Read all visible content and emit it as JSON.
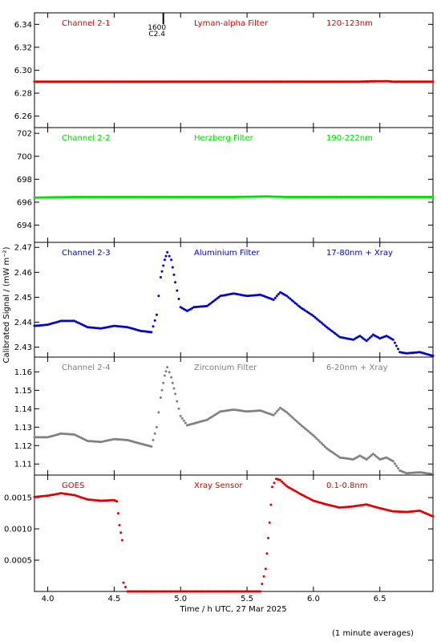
{
  "chart_data": {
    "type": "scatter",
    "shared_x": {
      "label": "Time / h UTC, 27 Mar 2025",
      "range": [
        3.9,
        6.9
      ],
      "ticks": [
        4.0,
        4.5,
        5.0,
        5.5,
        6.0,
        6.5
      ],
      "tick_labels": [
        "4.0",
        "4.5",
        "5.0",
        "5.5",
        "6.0",
        "6.5"
      ]
    },
    "ylabel": "Calibrated Signal / (mW m⁻²)",
    "footnote": "(1 minute averages)",
    "flare_marker": {
      "x": 4.87,
      "labels": [
        "1600",
        "C2.4"
      ]
    },
    "panels": [
      {
        "name": "Channel 2-1",
        "filter": "Lyman-alpha Filter",
        "band": "120-123nm",
        "color": "#dd0000",
        "ylim": [
          6.25,
          6.35
        ],
        "yticks": [
          6.26,
          6.28,
          6.3,
          6.32,
          6.34
        ],
        "ytick_labels": [
          "6.26",
          "6.28",
          "6.30",
          "6.32",
          "6.34"
        ],
        "points": [
          [
            3.9,
            6.29
          ],
          [
            4.2,
            6.29
          ],
          [
            4.5,
            6.29
          ],
          [
            4.8,
            6.29
          ],
          [
            5.1,
            6.29
          ],
          [
            5.4,
            6.29
          ],
          [
            5.7,
            6.29
          ],
          [
            6.0,
            6.29
          ],
          [
            6.3,
            6.29
          ],
          [
            6.55,
            6.2905
          ],
          [
            6.6,
            6.29
          ],
          [
            6.9,
            6.29
          ]
        ]
      },
      {
        "name": "Channel 2-2",
        "filter": "Herzberg Filter",
        "band": "190-222nm",
        "color": "#00dd00",
        "ylim": [
          692.5,
          702.5
        ],
        "yticks": [
          694,
          696,
          698,
          700,
          702
        ],
        "ytick_labels": [
          "694",
          "696",
          "698",
          "700",
          "702"
        ],
        "points": [
          [
            3.9,
            696.4
          ],
          [
            4.2,
            696.45
          ],
          [
            4.5,
            696.45
          ],
          [
            4.8,
            696.45
          ],
          [
            5.1,
            696.45
          ],
          [
            5.4,
            696.45
          ],
          [
            5.65,
            696.5
          ],
          [
            5.8,
            696.45
          ],
          [
            6.1,
            696.45
          ],
          [
            6.4,
            696.45
          ],
          [
            6.7,
            696.45
          ],
          [
            6.9,
            696.45
          ]
        ]
      },
      {
        "name": "Channel 2-3",
        "filter": "Aluminium Filter",
        "band": "17-80nm + Xray",
        "color": "#0000cc",
        "ylim": [
          2.426,
          2.472
        ],
        "yticks": [
          2.43,
          2.44,
          2.45,
          2.46,
          2.47
        ],
        "ytick_labels": [
          "2.43",
          "2.44",
          "2.45",
          "2.46",
          "2.47"
        ],
        "points": [
          [
            3.9,
            2.4385
          ],
          [
            4.0,
            2.439
          ],
          [
            4.1,
            2.4405
          ],
          [
            4.2,
            2.4405
          ],
          [
            4.3,
            2.438
          ],
          [
            4.4,
            2.4375
          ],
          [
            4.5,
            2.4385
          ],
          [
            4.6,
            2.438
          ],
          [
            4.7,
            2.4365
          ],
          [
            4.78,
            2.436
          ],
          [
            4.82,
            2.443
          ],
          [
            4.85,
            2.458
          ],
          [
            4.88,
            2.465
          ],
          [
            4.9,
            2.468
          ],
          [
            4.93,
            2.465
          ],
          [
            4.96,
            2.456
          ],
          [
            5.0,
            2.446
          ],
          [
            5.05,
            2.4445
          ],
          [
            5.1,
            2.446
          ],
          [
            5.2,
            2.4465
          ],
          [
            5.3,
            2.4505
          ],
          [
            5.4,
            2.4515
          ],
          [
            5.5,
            2.4505
          ],
          [
            5.6,
            2.451
          ],
          [
            5.7,
            2.449
          ],
          [
            5.75,
            2.452
          ],
          [
            5.8,
            2.4505
          ],
          [
            5.9,
            2.446
          ],
          [
            6.0,
            2.4425
          ],
          [
            6.1,
            2.438
          ],
          [
            6.2,
            2.434
          ],
          [
            6.3,
            2.433
          ],
          [
            6.35,
            2.4345
          ],
          [
            6.4,
            2.4325
          ],
          [
            6.45,
            2.435
          ],
          [
            6.5,
            2.4335
          ],
          [
            6.55,
            2.4345
          ],
          [
            6.6,
            2.433
          ],
          [
            6.65,
            2.428
          ],
          [
            6.7,
            2.4275
          ],
          [
            6.8,
            2.428
          ],
          [
            6.9,
            2.4265
          ]
        ]
      },
      {
        "name": "Channel 2-4",
        "filter": "Zirconium Filter",
        "band": "6-20nm + Xray",
        "color": "#808080",
        "ylim": [
          1.104,
          1.168
        ],
        "yticks": [
          1.11,
          1.12,
          1.13,
          1.14,
          1.15,
          1.16
        ],
        "ytick_labels": [
          "1.11",
          "1.12",
          "1.13",
          "1.14",
          "1.15",
          "1.16"
        ],
        "points": [
          [
            3.9,
            1.1245
          ],
          [
            4.0,
            1.1245
          ],
          [
            4.1,
            1.1265
          ],
          [
            4.2,
            1.126
          ],
          [
            4.3,
            1.1225
          ],
          [
            4.4,
            1.122
          ],
          [
            4.5,
            1.1235
          ],
          [
            4.6,
            1.123
          ],
          [
            4.7,
            1.121
          ],
          [
            4.78,
            1.1195
          ],
          [
            4.82,
            1.13
          ],
          [
            4.85,
            1.146
          ],
          [
            4.88,
            1.158
          ],
          [
            4.9,
            1.1625
          ],
          [
            4.93,
            1.157
          ],
          [
            4.96,
            1.148
          ],
          [
            5.0,
            1.136
          ],
          [
            5.05,
            1.131
          ],
          [
            5.1,
            1.132
          ],
          [
            5.2,
            1.134
          ],
          [
            5.3,
            1.1385
          ],
          [
            5.4,
            1.1395
          ],
          [
            5.5,
            1.1385
          ],
          [
            5.6,
            1.139
          ],
          [
            5.7,
            1.1365
          ],
          [
            5.75,
            1.1405
          ],
          [
            5.8,
            1.138
          ],
          [
            5.9,
            1.1315
          ],
          [
            6.0,
            1.1255
          ],
          [
            6.1,
            1.1185
          ],
          [
            6.2,
            1.1135
          ],
          [
            6.3,
            1.1125
          ],
          [
            6.35,
            1.1145
          ],
          [
            6.4,
            1.1125
          ],
          [
            6.45,
            1.1155
          ],
          [
            6.5,
            1.1125
          ],
          [
            6.55,
            1.1135
          ],
          [
            6.6,
            1.1115
          ],
          [
            6.65,
            1.1065
          ],
          [
            6.7,
            1.105
          ],
          [
            6.8,
            1.1055
          ],
          [
            6.9,
            1.1045
          ]
        ]
      },
      {
        "name": "GOES",
        "filter": "Xray Sensor",
        "band": "0.1-0.8nm",
        "color": "#dd0000",
        "ylim": [
          0.0,
          0.00186
        ],
        "yticks": [
          0.0005,
          0.001,
          0.0015
        ],
        "ytick_labels": [
          "0.0005",
          "0.0010",
          "0.0015"
        ],
        "points": [
          [
            3.9,
            0.00151
          ],
          [
            4.0,
            0.00153
          ],
          [
            4.1,
            0.00157
          ],
          [
            4.2,
            0.00154
          ],
          [
            4.3,
            0.00147
          ],
          [
            4.4,
            0.00145
          ],
          [
            4.5,
            0.00146
          ],
          [
            4.52,
            0.00144
          ],
          [
            4.54,
            0.00106
          ],
          [
            4.56,
            0.00082
          ],
          [
            4.57,
            0.00014
          ],
          [
            4.6,
            0.0
          ],
          [
            4.8,
            0.0
          ],
          [
            5.0,
            0.0
          ],
          [
            5.2,
            0.0
          ],
          [
            5.4,
            0.0
          ],
          [
            5.6,
            0.0
          ],
          [
            5.64,
            0.00036
          ],
          [
            5.67,
            0.0011
          ],
          [
            5.69,
            0.00167
          ],
          [
            5.72,
            0.0018
          ],
          [
            5.75,
            0.00178
          ],
          [
            5.8,
            0.00168
          ],
          [
            5.9,
            0.00156
          ],
          [
            6.0,
            0.00145
          ],
          [
            6.1,
            0.00139
          ],
          [
            6.2,
            0.00134
          ],
          [
            6.3,
            0.00136
          ],
          [
            6.4,
            0.00139
          ],
          [
            6.5,
            0.00133
          ],
          [
            6.6,
            0.00128
          ],
          [
            6.7,
            0.00127
          ],
          [
            6.8,
            0.00129
          ],
          [
            6.9,
            0.0012
          ]
        ]
      }
    ]
  }
}
